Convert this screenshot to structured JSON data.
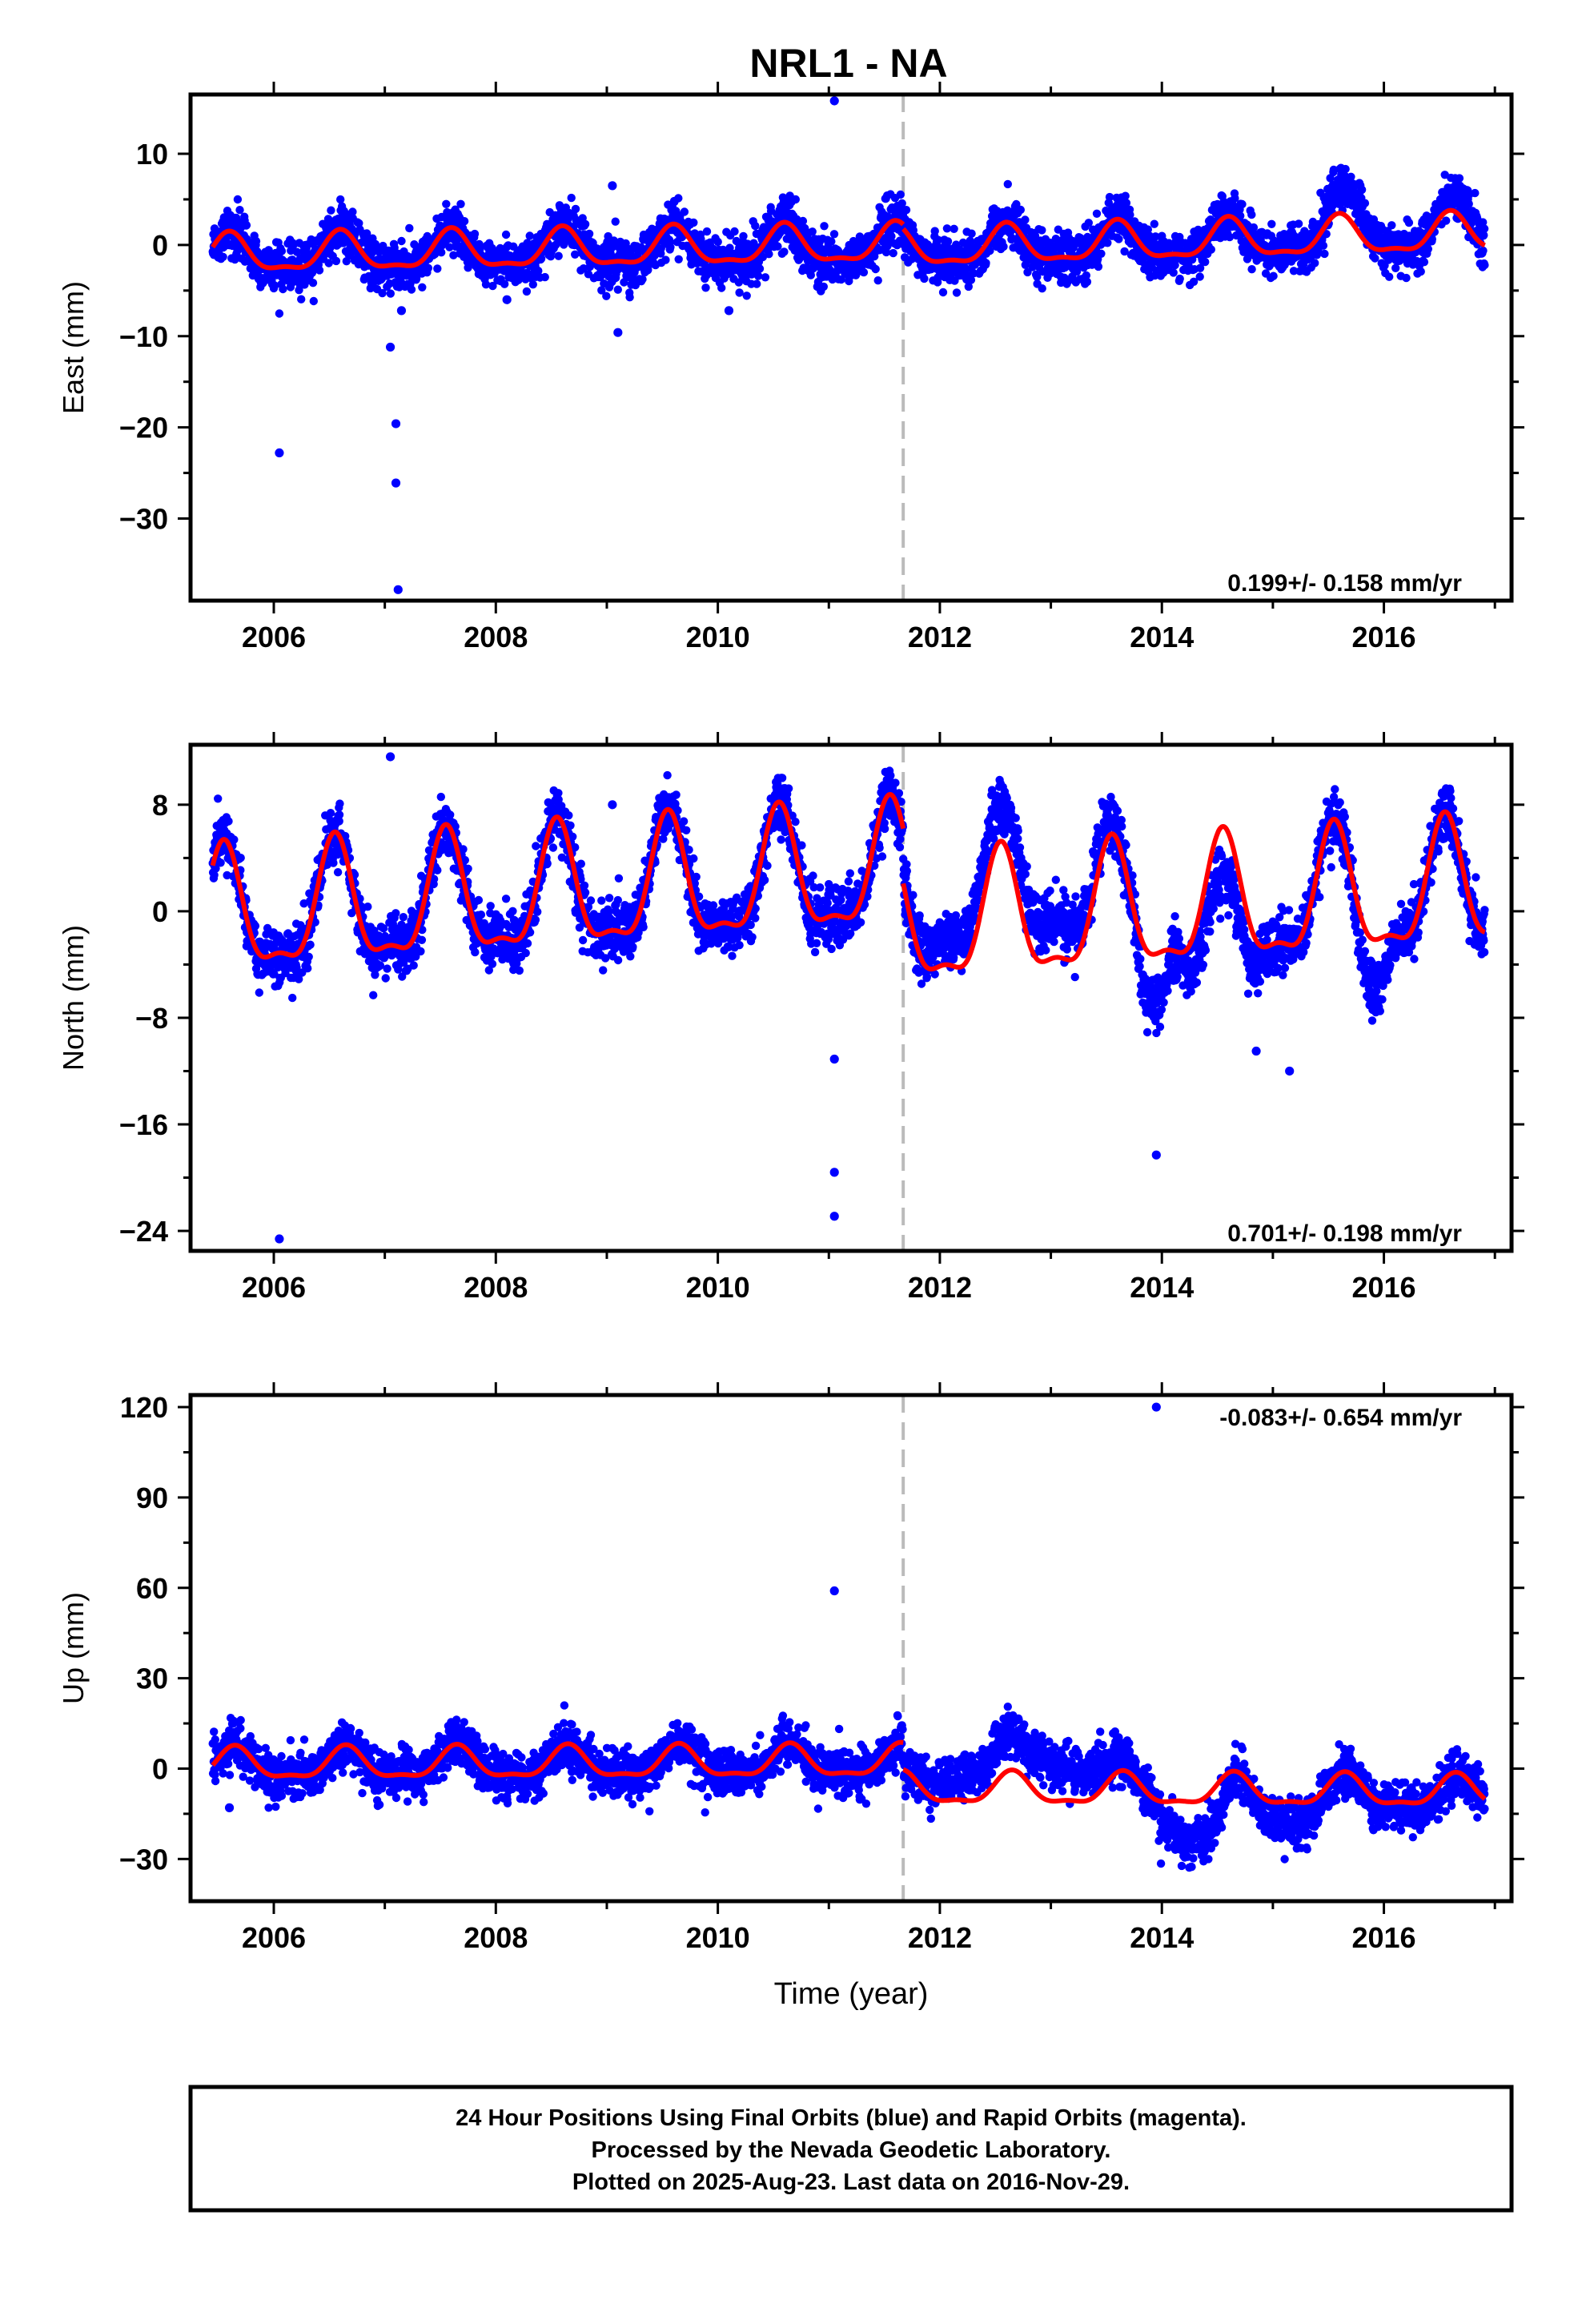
{
  "title": "NRL1 - NA",
  "colors": {
    "final_orbits": "#0000ff",
    "model_fit": "#ff0000",
    "offset_line": "#bbbbbb",
    "frame": "#000000"
  },
  "chart_data": [
    {
      "type": "scatter",
      "name": "east",
      "ylabel": "East (mm)",
      "xlabel": "",
      "xlim": [
        2005.25,
        2017.15
      ],
      "ylim": [
        -39,
        16.5
      ],
      "x_ticks": [
        2006,
        2008,
        2010,
        2012,
        2014,
        2016
      ],
      "y_ticks": [
        10,
        0,
        -10,
        -20,
        -30
      ],
      "y_tick_labels": [
        "10",
        "0",
        "−10",
        "−20",
        "−30"
      ],
      "rate_label": "0.199+/- 0.158 mm/yr",
      "rate_label_position": "bottom-right",
      "offset_epoch": 2011.67,
      "data_start": 2005.45,
      "data_end": 2016.91,
      "daily_scatter_mm": 1.3,
      "series": [
        {
          "name": "seasonal model (before offset)",
          "x": [
            2005.45,
            2011.67
          ],
          "trend": [
            -1.2,
            0.0
          ],
          "amplitude": 2.0,
          "peak_phase": 0.6
        },
        {
          "name": "seasonal model (after offset)",
          "x": [
            2011.67,
            2016.91
          ],
          "trend": [
            -0.5,
            1.2
          ],
          "amplitude": 2.0,
          "peak_phase": 0.6
        }
      ],
      "deviations": [
        {
          "x": [
            2015.4,
            2016.0
          ],
          "dy": 3.0
        },
        {
          "x": [
            2016.4,
            2016.91
          ],
          "dy": 1.5
        }
      ],
      "outliers": [
        {
          "x": 2006.05,
          "y": -22.8
        },
        {
          "x": 2007.05,
          "y": -11.2
        },
        {
          "x": 2007.1,
          "y": -19.6
        },
        {
          "x": 2007.1,
          "y": -26.1
        },
        {
          "x": 2007.12,
          "y": -37.8
        },
        {
          "x": 2007.15,
          "y": -7.2
        },
        {
          "x": 2009.1,
          "y": -9.6
        },
        {
          "x": 2009.05,
          "y": 6.5
        },
        {
          "x": 2011.05,
          "y": 15.8
        },
        {
          "x": 2010.1,
          "y": -7.2
        },
        {
          "x": 2008.1,
          "y": -6.0
        }
      ]
    },
    {
      "type": "scatter",
      "name": "north",
      "ylabel": "North (mm)",
      "xlabel": "",
      "xlim": [
        2005.25,
        2017.15
      ],
      "ylim": [
        -25.5,
        12.5
      ],
      "x_ticks": [
        2006,
        2008,
        2010,
        2012,
        2014,
        2016
      ],
      "y_ticks": [
        8,
        0,
        -8,
        -16,
        -24
      ],
      "y_tick_labels": [
        "8",
        "0",
        "−8",
        "−16",
        "−24"
      ],
      "rate_label": "0.701+/- 0.198 mm/yr",
      "rate_label_position": "bottom-right",
      "offset_epoch": 2011.67,
      "data_start": 2005.45,
      "data_end": 2016.91,
      "daily_scatter_mm": 1.1,
      "series": [
        {
          "name": "seasonal model (before offset)",
          "x": [
            2005.45,
            2011.67
          ],
          "trend": [
            -0.6,
            2.9
          ],
          "amplitude": 4.4,
          "peak_phase": 0.55
        },
        {
          "name": "seasonal model (after offset)",
          "x": [
            2011.67,
            2016.91
          ],
          "trend": [
            -1.3,
            1.6
          ],
          "amplitude": 4.5,
          "peak_phase": 0.55
        }
      ],
      "deviations": [
        {
          "x": [
            2011.67,
            2013.75
          ],
          "dy": 3.0
        },
        {
          "x": [
            2013.75,
            2014.1
          ],
          "dy": -4.0
        },
        {
          "x": [
            2014.1,
            2015.0
          ],
          "dy": -3.5
        },
        {
          "x": [
            2015.7,
            2016.1
          ],
          "dy": -4.0
        }
      ],
      "outliers": [
        {
          "x": 2007.05,
          "y": 11.6
        },
        {
          "x": 2011.05,
          "y": -11.1
        },
        {
          "x": 2011.05,
          "y": -19.6
        },
        {
          "x": 2011.05,
          "y": -22.9
        },
        {
          "x": 2006.05,
          "y": -24.6
        },
        {
          "x": 2013.95,
          "y": -18.3
        },
        {
          "x": 2014.85,
          "y": -10.5
        },
        {
          "x": 2015.15,
          "y": -12.0
        },
        {
          "x": 2009.05,
          "y": 8.0
        }
      ]
    },
    {
      "type": "scatter",
      "name": "up",
      "ylabel": "Up (mm)",
      "xlabel": "Time (year)",
      "xlim": [
        2005.25,
        2017.15
      ],
      "ylim": [
        -44,
        124
      ],
      "x_ticks": [
        2006,
        2008,
        2010,
        2012,
        2014,
        2016
      ],
      "y_ticks": [
        120,
        90,
        60,
        30,
        0,
        -30
      ],
      "y_tick_labels": [
        "120",
        "90",
        "60",
        "30",
        "0",
        "−30"
      ],
      "rate_label": "-0.083+/- 0.654 mm/yr",
      "rate_label_position": "top-right",
      "offset_epoch": 2011.67,
      "data_start": 2005.45,
      "data_end": 2016.91,
      "daily_scatter_mm": 3.8,
      "series": [
        {
          "name": "seasonal model (before offset)",
          "x": [
            2005.45,
            2011.67
          ],
          "trend": [
            1.0,
            2.0
          ],
          "amplitude": 5.0,
          "peak_phase": 0.65
        },
        {
          "name": "seasonal model (after offset)",
          "x": [
            2011.67,
            2016.91
          ],
          "trend": [
            -7.0,
            -8.0
          ],
          "amplitude": 5.0,
          "peak_phase": 0.65
        }
      ],
      "deviations": [
        {
          "x": [
            2011.67,
            2013.9
          ],
          "dy": 12.0
        },
        {
          "x": [
            2013.9,
            2014.7
          ],
          "dy": -14.0
        },
        {
          "x": [
            2014.7,
            2015.5
          ],
          "dy": -8.0
        },
        {
          "x": [
            2015.5,
            2016.91
          ],
          "dy": -2.0
        }
      ],
      "outliers": [
        {
          "x": 2011.05,
          "y": 59
        },
        {
          "x": 2013.95,
          "y": 120
        },
        {
          "x": 2005.6,
          "y": -13
        }
      ]
    }
  ],
  "footer": {
    "line1": "24 Hour Positions Using Final Orbits (blue) and Rapid Orbits (magenta).",
    "line2": "Processed by the Nevada Geodetic Laboratory.",
    "line3": "Plotted on 2025-Aug-23. Last data on 2016-Nov-29."
  }
}
